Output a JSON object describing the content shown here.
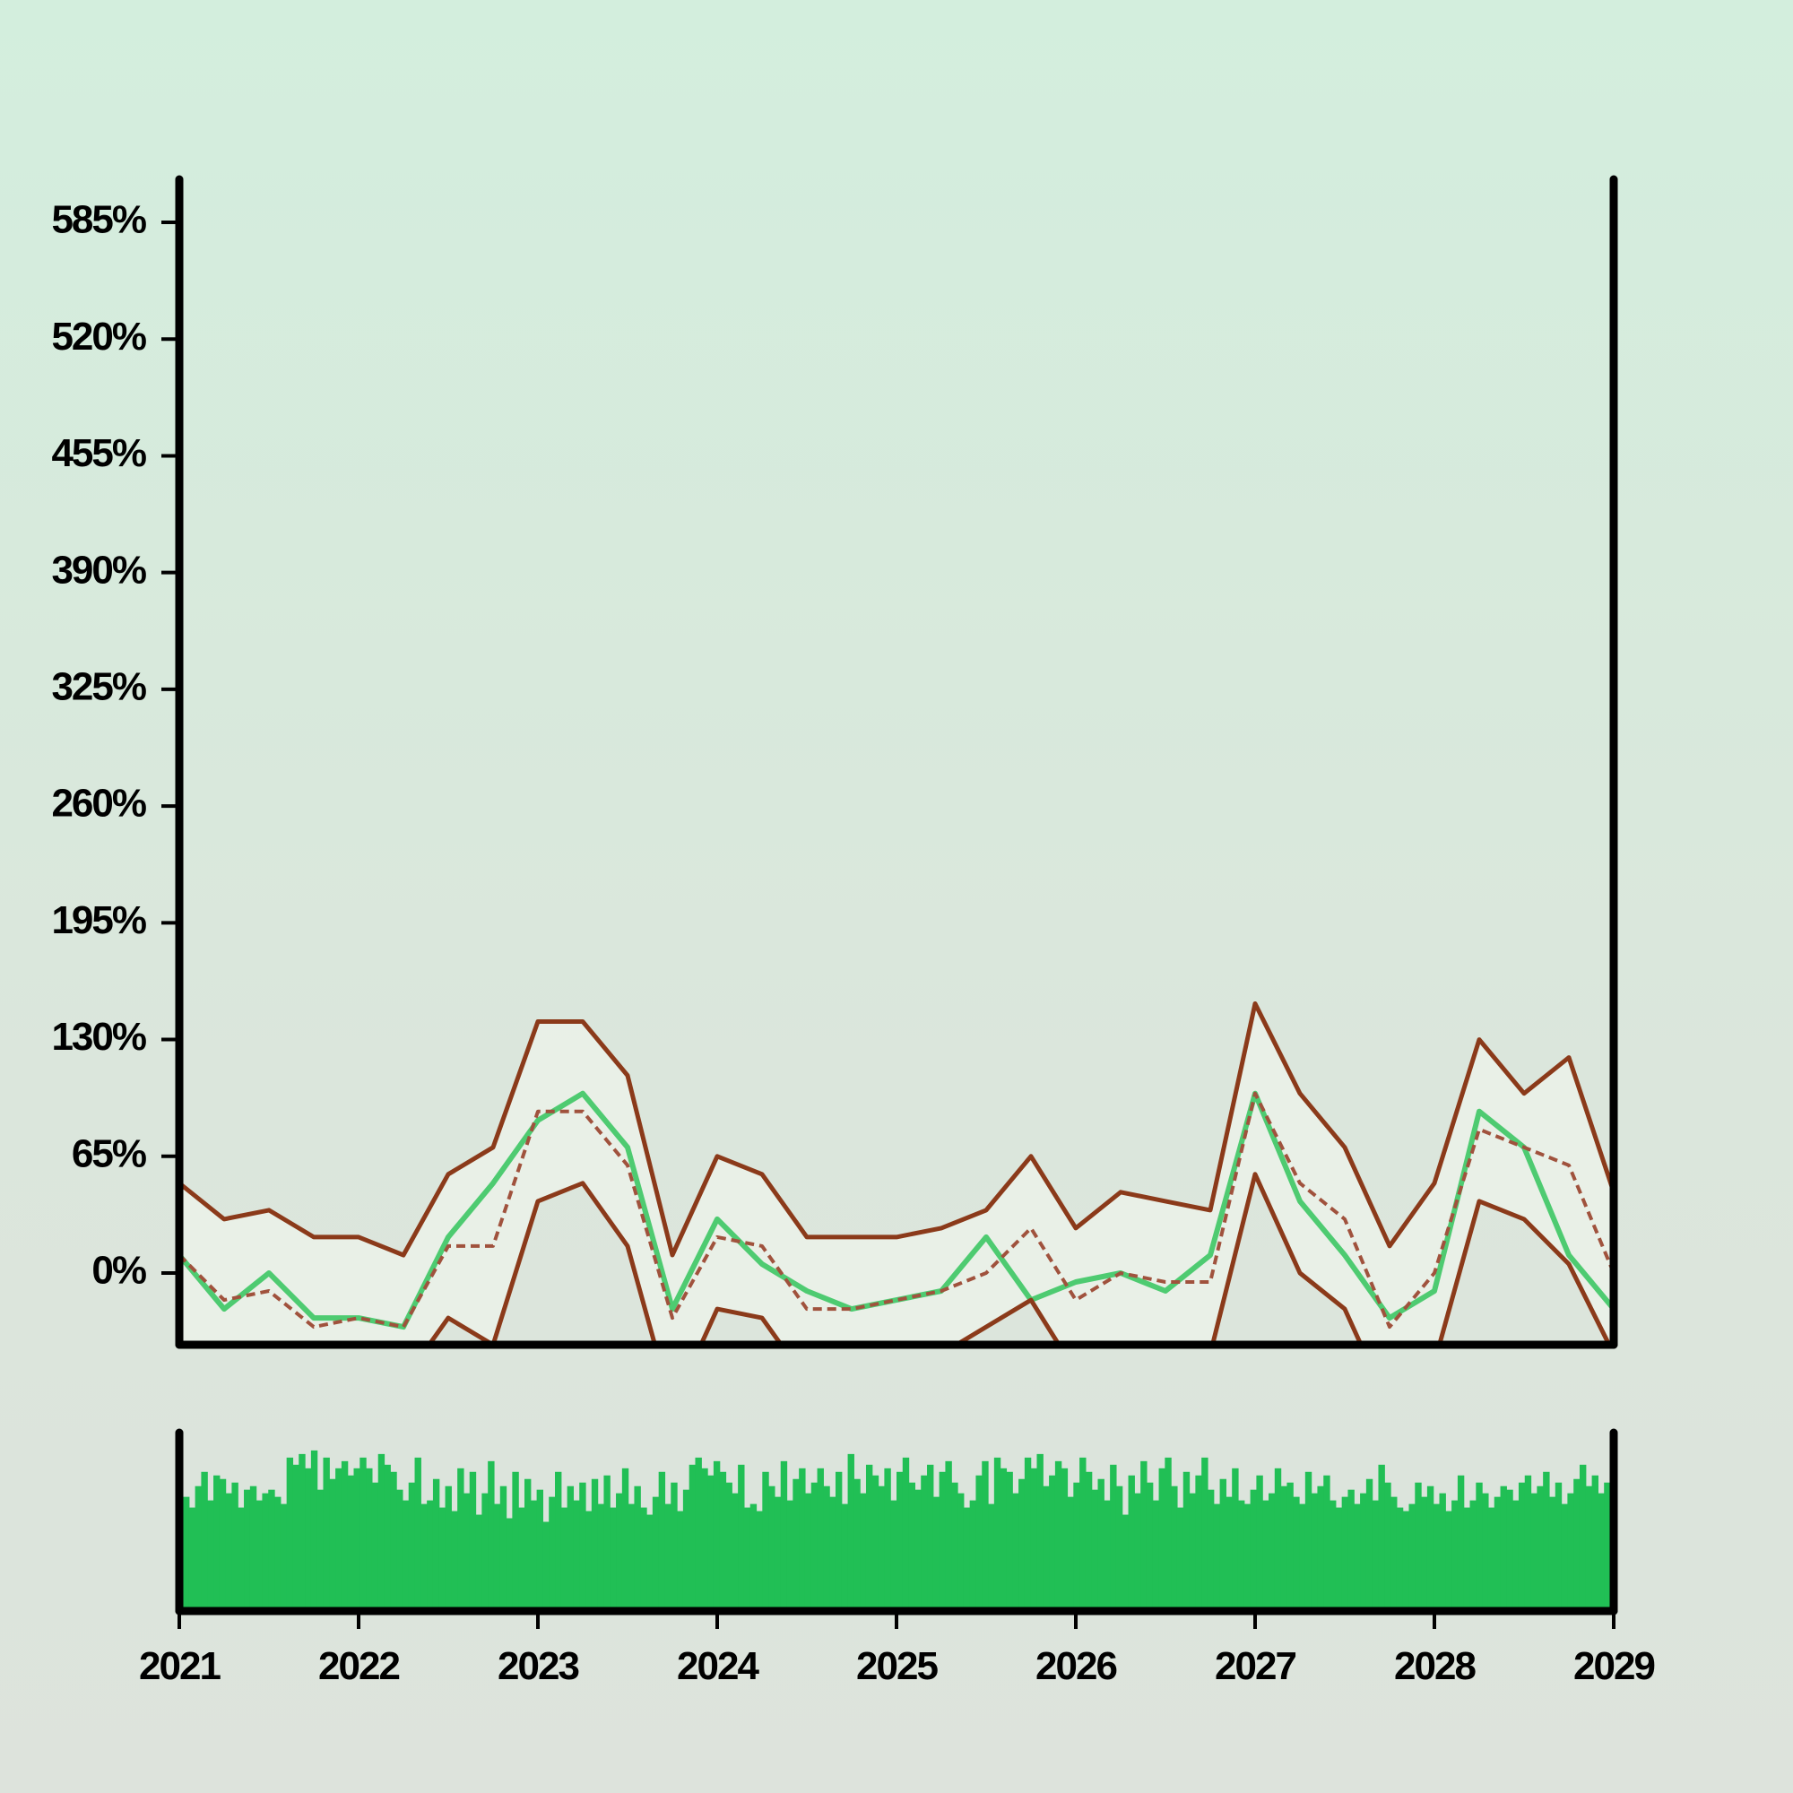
{
  "chart_data": [
    {
      "type": "line",
      "title": "",
      "xlabel": "",
      "ylabel": "",
      "x_range": [
        2021,
        2029
      ],
      "ylim": [
        -30,
        600
      ],
      "y_ticks": [
        0,
        65,
        130,
        195,
        260,
        325,
        390,
        455,
        520,
        585
      ],
      "y_tick_labels": [
        "0%",
        "65%",
        "130%",
        "195%",
        "260%",
        "325%",
        "390%",
        "455%",
        "520%",
        "585%"
      ],
      "grid": false,
      "legend": "none",
      "x": [
        2021.0,
        2021.25,
        2021.5,
        2021.75,
        2022.0,
        2022.25,
        2022.5,
        2022.75,
        2023.0,
        2023.25,
        2023.5,
        2023.75,
        2024.0,
        2024.25,
        2024.5,
        2024.75,
        2025.0,
        2025.25,
        2025.5,
        2025.75,
        2026.0,
        2026.25,
        2026.5,
        2026.75,
        2027.0,
        2027.25,
        2027.5,
        2027.75,
        2028.0,
        2028.25,
        2028.5,
        2028.75,
        2029.0
      ],
      "series": [
        {
          "role": "price",
          "color": "#4ecb71",
          "values": [
            10,
            -20,
            0,
            -25,
            -25,
            -30,
            20,
            50,
            85,
            100,
            70,
            -20,
            30,
            5,
            -10,
            -20,
            -15,
            -10,
            20,
            -15,
            -5,
            0,
            -10,
            10,
            100,
            40,
            10,
            -25,
            -10,
            90,
            70,
            10,
            -20
          ]
        },
        {
          "role": "upper-band",
          "color": "#8b3a1a",
          "values": [
            50,
            30,
            35,
            20,
            20,
            10,
            55,
            70,
            140,
            140,
            110,
            10,
            65,
            55,
            20,
            20,
            20,
            25,
            35,
            65,
            25,
            45,
            40,
            35,
            150,
            100,
            70,
            15,
            50,
            130,
            100,
            120,
            45
          ]
        },
        {
          "role": "moving-average",
          "color": "#a0523d",
          "dashed": true,
          "values": [
            10,
            -15,
            -10,
            -30,
            -25,
            -30,
            15,
            15,
            90,
            90,
            60,
            -25,
            20,
            15,
            -20,
            -20,
            -15,
            -10,
            0,
            25,
            -15,
            0,
            -5,
            -5,
            100,
            50,
            30,
            -30,
            0,
            80,
            70,
            60,
            0
          ]
        },
        {
          "role": "lower-band",
          "color": "#8b3a1a",
          "values": [
            -50,
            -60,
            -65,
            -65,
            -60,
            -60,
            -25,
            -40,
            40,
            50,
            15,
            -75,
            -20,
            -25,
            -60,
            -60,
            -50,
            -45,
            -30,
            -15,
            -55,
            -45,
            -45,
            -45,
            55,
            0,
            -20,
            -75,
            -50,
            40,
            30,
            5,
            -45
          ]
        }
      ]
    },
    {
      "type": "bar",
      "title": "",
      "xlabel": "",
      "ylabel": "",
      "x_range": [
        2021,
        2029
      ],
      "x_ticks": [
        2021,
        2022,
        2023,
        2024,
        2025,
        2026,
        2027,
        2028,
        2029
      ],
      "x_tick_labels": [
        "2021",
        "2022",
        "2023",
        "2024",
        "2025",
        "2026",
        "2027",
        "2028",
        "2029"
      ],
      "ylim": [
        0,
        1
      ],
      "color": "#21bf55",
      "values": [
        0.64,
        0.58,
        0.7,
        0.78,
        0.62,
        0.76,
        0.74,
        0.66,
        0.72,
        0.58,
        0.68,
        0.7,
        0.62,
        0.66,
        0.68,
        0.64,
        0.6,
        0.86,
        0.82,
        0.88,
        0.8,
        0.9,
        0.68,
        0.86,
        0.74,
        0.8,
        0.84,
        0.76,
        0.8,
        0.86,
        0.8,
        0.72,
        0.88,
        0.82,
        0.78,
        0.68,
        0.62,
        0.72,
        0.86,
        0.6,
        0.62,
        0.74,
        0.58,
        0.7,
        0.56,
        0.8,
        0.66,
        0.78,
        0.54,
        0.66,
        0.84,
        0.6,
        0.7,
        0.52,
        0.78,
        0.58,
        0.74,
        0.62,
        0.68,
        0.5,
        0.64,
        0.78,
        0.58,
        0.7,
        0.62,
        0.72,
        0.56,
        0.74,
        0.6,
        0.76,
        0.58,
        0.66,
        0.8,
        0.6,
        0.7,
        0.58,
        0.54,
        0.64,
        0.78,
        0.6,
        0.72,
        0.56,
        0.68,
        0.82,
        0.86,
        0.8,
        0.76,
        0.84,
        0.78,
        0.72,
        0.66,
        0.82,
        0.58,
        0.6,
        0.56,
        0.78,
        0.7,
        0.64,
        0.84,
        0.62,
        0.74,
        0.8,
        0.66,
        0.72,
        0.8,
        0.7,
        0.64,
        0.78,
        0.6,
        0.88,
        0.74,
        0.66,
        0.82,
        0.76,
        0.7,
        0.8,
        0.62,
        0.78,
        0.86,
        0.72,
        0.68,
        0.76,
        0.82,
        0.64,
        0.78,
        0.84,
        0.72,
        0.66,
        0.58,
        0.62,
        0.76,
        0.84,
        0.6,
        0.86,
        0.8,
        0.78,
        0.66,
        0.74,
        0.86,
        0.8,
        0.88,
        0.7,
        0.76,
        0.84,
        0.8,
        0.64,
        0.72,
        0.86,
        0.78,
        0.68,
        0.74,
        0.62,
        0.82,
        0.7,
        0.54,
        0.76,
        0.66,
        0.84,
        0.72,
        0.62,
        0.8,
        0.86,
        0.7,
        0.58,
        0.78,
        0.66,
        0.76,
        0.86,
        0.68,
        0.6,
        0.74,
        0.64,
        0.8,
        0.62,
        0.6,
        0.68,
        0.76,
        0.62,
        0.66,
        0.8,
        0.7,
        0.72,
        0.64,
        0.6,
        0.78,
        0.66,
        0.7,
        0.76,
        0.62,
        0.58,
        0.64,
        0.68,
        0.6,
        0.66,
        0.74,
        0.62,
        0.82,
        0.72,
        0.64,
        0.58,
        0.56,
        0.6,
        0.72,
        0.64,
        0.7,
        0.6,
        0.66,
        0.56,
        0.62,
        0.76,
        0.58,
        0.62,
        0.72,
        0.66,
        0.58,
        0.64,
        0.7,
        0.68,
        0.62,
        0.72,
        0.76,
        0.66,
        0.7,
        0.78,
        0.64,
        0.72,
        0.6,
        0.66,
        0.74,
        0.82,
        0.7,
        0.76,
        0.66,
        0.72
      ]
    }
  ]
}
